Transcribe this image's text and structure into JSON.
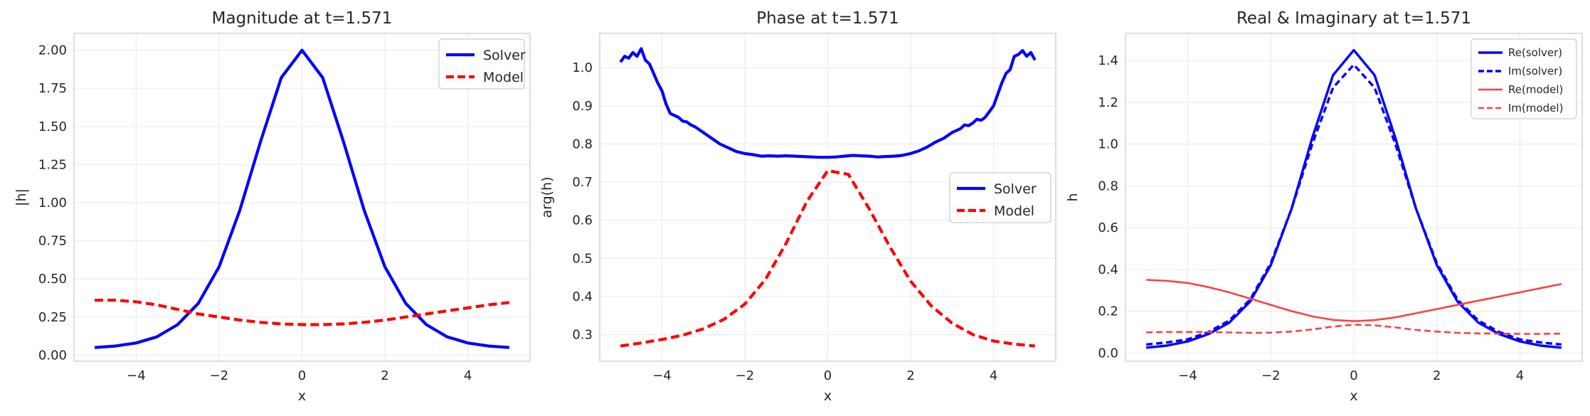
{
  "chart_data": [
    {
      "type": "line",
      "title": "Magnitude at t=1.571",
      "xlabel": "x",
      "ylabel": "|h|",
      "xlim": [
        -5.5,
        5.5
      ],
      "ylim": [
        -0.04,
        2.11
      ],
      "xticks": [
        -4,
        -2,
        0,
        2,
        4
      ],
      "yticks": [
        0.0,
        0.25,
        0.5,
        0.75,
        1.0,
        1.25,
        1.5,
        1.75,
        2.0
      ],
      "ytick_labels": [
        "0.00",
        "0.25",
        "0.50",
        "0.75",
        "1.00",
        "1.25",
        "1.50",
        "1.75",
        "2.00"
      ],
      "grid": true,
      "legend_position": "upper-right",
      "series": [
        {
          "name": "Solver",
          "color": "#0000ff",
          "style": "solid",
          "x": [
            -5,
            -4.5,
            -4,
            -3.5,
            -3,
            -2.5,
            -2,
            -1.5,
            -1,
            -0.5,
            0,
            0.5,
            1,
            1.5,
            2,
            2.5,
            3,
            3.5,
            4,
            4.5,
            5
          ],
          "y": [
            0.05,
            0.06,
            0.08,
            0.12,
            0.2,
            0.34,
            0.58,
            0.95,
            1.4,
            1.82,
            2.0,
            1.82,
            1.4,
            0.95,
            0.58,
            0.34,
            0.2,
            0.12,
            0.08,
            0.06,
            0.05
          ]
        },
        {
          "name": "Model",
          "color": "#ff0000",
          "style": "dashed",
          "x": [
            -5,
            -4.5,
            -4,
            -3.5,
            -3,
            -2.5,
            -2,
            -1.5,
            -1,
            -0.5,
            0,
            0.5,
            1,
            1.5,
            2,
            2.5,
            3,
            3.5,
            4,
            4.5,
            5
          ],
          "y": [
            0.36,
            0.36,
            0.35,
            0.33,
            0.3,
            0.27,
            0.25,
            0.23,
            0.215,
            0.205,
            0.2,
            0.2,
            0.205,
            0.215,
            0.23,
            0.25,
            0.27,
            0.29,
            0.31,
            0.33,
            0.345
          ]
        }
      ]
    },
    {
      "type": "line",
      "title": "Phase at t=1.571",
      "xlabel": "x",
      "ylabel": "arg(h)",
      "xlim": [
        -5.5,
        5.5
      ],
      "ylim": [
        0.23,
        1.09
      ],
      "xticks": [
        -4,
        -2,
        0,
        2,
        4
      ],
      "yticks": [
        0.3,
        0.4,
        0.5,
        0.6,
        0.7,
        0.8,
        0.9,
        1.0
      ],
      "ytick_labels": [
        "0.3",
        "0.4",
        "0.5",
        "0.6",
        "0.7",
        "0.8",
        "0.9",
        "1.0"
      ],
      "grid": true,
      "legend_position": "center-right",
      "series": [
        {
          "name": "Solver",
          "color": "#0000ff",
          "style": "solid",
          "x": [
            -5,
            -4.9,
            -4.8,
            -4.7,
            -4.6,
            -4.5,
            -4.4,
            -4.3,
            -4.2,
            -4.1,
            -4.0,
            -3.9,
            -3.8,
            -3.7,
            -3.6,
            -3.5,
            -3.4,
            -3.3,
            -3.2,
            -3.0,
            -2.8,
            -2.6,
            -2.4,
            -2.2,
            -2.0,
            -1.8,
            -1.6,
            -1.4,
            -1.2,
            -1.0,
            -0.8,
            -0.6,
            -0.4,
            -0.2,
            0.0,
            0.2,
            0.4,
            0.6,
            0.8,
            1.0,
            1.2,
            1.4,
            1.6,
            1.8,
            2.0,
            2.2,
            2.4,
            2.6,
            2.8,
            3.0,
            3.2,
            3.3,
            3.4,
            3.5,
            3.6,
            3.7,
            3.8,
            3.9,
            4.0,
            4.1,
            4.2,
            4.3,
            4.4,
            4.5,
            4.6,
            4.7,
            4.8,
            4.9,
            5.0
          ],
          "y": [
            1.015,
            1.03,
            1.025,
            1.04,
            1.03,
            1.05,
            1.02,
            1.01,
            0.985,
            0.96,
            0.94,
            0.905,
            0.88,
            0.875,
            0.87,
            0.86,
            0.858,
            0.85,
            0.845,
            0.83,
            0.815,
            0.8,
            0.79,
            0.78,
            0.775,
            0.772,
            0.768,
            0.769,
            0.768,
            0.769,
            0.768,
            0.767,
            0.766,
            0.765,
            0.765,
            0.766,
            0.768,
            0.77,
            0.769,
            0.768,
            0.766,
            0.767,
            0.768,
            0.77,
            0.775,
            0.782,
            0.792,
            0.805,
            0.815,
            0.83,
            0.84,
            0.85,
            0.848,
            0.855,
            0.865,
            0.862,
            0.87,
            0.885,
            0.9,
            0.93,
            0.96,
            0.985,
            0.995,
            1.03,
            1.035,
            1.045,
            1.03,
            1.04,
            1.02
          ]
        },
        {
          "name": "Model",
          "color": "#ff0000",
          "style": "dashed",
          "x": [
            -5,
            -4.5,
            -4,
            -3.5,
            -3,
            -2.5,
            -2,
            -1.5,
            -1,
            -0.5,
            0,
            0.5,
            1,
            1.5,
            2,
            2.5,
            3,
            3.5,
            4,
            4.5,
            5
          ],
          "y": [
            0.27,
            0.278,
            0.287,
            0.298,
            0.315,
            0.34,
            0.38,
            0.445,
            0.54,
            0.65,
            0.73,
            0.72,
            0.63,
            0.53,
            0.44,
            0.375,
            0.33,
            0.3,
            0.283,
            0.275,
            0.27
          ]
        }
      ]
    },
    {
      "type": "line",
      "title": "Real & Imaginary at t=1.571",
      "xlabel": "x",
      "ylabel": "h",
      "xlim": [
        -5.5,
        5.5
      ],
      "ylim": [
        -0.04,
        1.53
      ],
      "xticks": [
        -4,
        -2,
        0,
        2,
        4
      ],
      "yticks": [
        0.0,
        0.2,
        0.4,
        0.6,
        0.8,
        1.0,
        1.2,
        1.4
      ],
      "ytick_labels": [
        "0.0",
        "0.2",
        "0.4",
        "0.6",
        "0.8",
        "1.0",
        "1.2",
        "1.4"
      ],
      "grid": true,
      "legend_position": "upper-right",
      "series": [
        {
          "name": "Re(solver)",
          "color": "#0000ff",
          "style": "solid",
          "x": [
            -5,
            -4.5,
            -4,
            -3.5,
            -3,
            -2.5,
            -2,
            -1.5,
            -1,
            -0.5,
            0,
            0.5,
            1,
            1.5,
            2,
            2.5,
            3,
            3.5,
            4,
            4.5,
            5
          ],
          "y": [
            0.025,
            0.035,
            0.055,
            0.09,
            0.145,
            0.245,
            0.42,
            0.69,
            1.03,
            1.33,
            1.45,
            1.33,
            1.03,
            0.69,
            0.42,
            0.245,
            0.145,
            0.09,
            0.055,
            0.035,
            0.025
          ]
        },
        {
          "name": "Im(solver)",
          "color": "#0000ff",
          "style": "dashed",
          "x": [
            -5,
            -4.5,
            -4,
            -3.5,
            -3,
            -2.5,
            -2,
            -1.5,
            -1,
            -0.5,
            0,
            0.5,
            1,
            1.5,
            2,
            2.5,
            3,
            3.5,
            4,
            4.5,
            5
          ],
          "y": [
            0.04,
            0.05,
            0.065,
            0.1,
            0.155,
            0.255,
            0.43,
            0.69,
            1.0,
            1.27,
            1.38,
            1.27,
            1.0,
            0.69,
            0.43,
            0.255,
            0.155,
            0.1,
            0.065,
            0.05,
            0.04
          ]
        },
        {
          "name": "Re(model)",
          "color": "#ff4040",
          "style": "solid",
          "x": [
            -5,
            -4.5,
            -4,
            -3.5,
            -3,
            -2.5,
            -2,
            -1.5,
            -1,
            -0.5,
            0,
            0.5,
            1,
            1.5,
            2,
            2.5,
            3,
            3.5,
            4,
            4.5,
            5
          ],
          "y": [
            0.35,
            0.345,
            0.335,
            0.315,
            0.29,
            0.26,
            0.23,
            0.2,
            0.175,
            0.158,
            0.152,
            0.157,
            0.17,
            0.19,
            0.21,
            0.23,
            0.25,
            0.27,
            0.29,
            0.31,
            0.33
          ]
        },
        {
          "name": "Im(model)",
          "color": "#ff4040",
          "style": "dashed",
          "x": [
            -5,
            -4.5,
            -4,
            -3.5,
            -3,
            -2.5,
            -2,
            -1.5,
            -1,
            -0.5,
            0,
            0.5,
            1,
            1.5,
            2,
            2.5,
            3,
            3.5,
            4,
            4.5,
            5
          ],
          "y": [
            0.098,
            0.1,
            0.1,
            0.1,
            0.098,
            0.096,
            0.097,
            0.102,
            0.112,
            0.126,
            0.135,
            0.132,
            0.122,
            0.11,
            0.102,
            0.096,
            0.093,
            0.092,
            0.091,
            0.091,
            0.092
          ]
        }
      ]
    }
  ]
}
